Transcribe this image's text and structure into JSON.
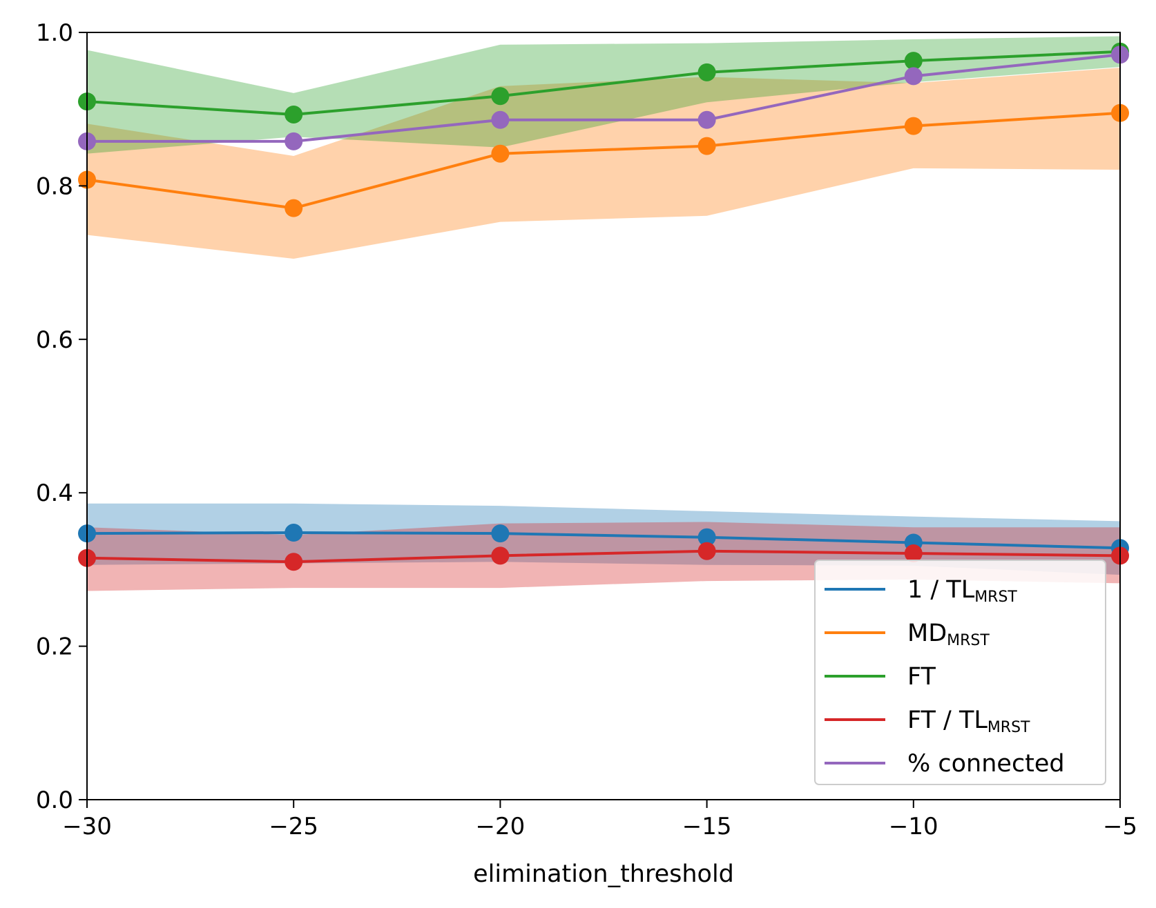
{
  "chart_data": {
    "type": "line",
    "xlabel": "elimination_threshold",
    "ylabel": "",
    "xlim": [
      -30,
      -5
    ],
    "ylim": [
      0.0,
      1.0
    ],
    "grid": false,
    "legend_position": "lower-right",
    "x": [
      -30,
      -25,
      -20,
      -15,
      -10,
      -5
    ],
    "x_tick_labels": [
      "−30",
      "−25",
      "−20",
      "−15",
      "−10",
      "−5"
    ],
    "y_ticks": [
      0.0,
      0.2,
      0.4,
      0.6,
      0.8,
      1.0
    ],
    "y_tick_labels": [
      "0.0",
      "0.2",
      "0.4",
      "0.6",
      "0.8",
      "1.0"
    ],
    "series": [
      {
        "name": "1 / TL",
        "name_subscript": "MRST",
        "color": "#1f77b4",
        "values": [
          0.347,
          0.348,
          0.347,
          0.342,
          0.335,
          0.328
        ],
        "lower": [
          0.306,
          0.308,
          0.31,
          0.306,
          0.305,
          0.293
        ],
        "upper": [
          0.386,
          0.386,
          0.383,
          0.376,
          0.369,
          0.363
        ]
      },
      {
        "name": "MD",
        "name_subscript": "MRST",
        "color": "#ff7f0e",
        "values": [
          0.808,
          0.771,
          0.842,
          0.852,
          0.878,
          0.895
        ],
        "lower": [
          0.736,
          0.705,
          0.753,
          0.761,
          0.823,
          0.821
        ],
        "upper": [
          0.881,
          0.839,
          0.93,
          0.942,
          0.934,
          0.954
        ]
      },
      {
        "name": "FT",
        "name_subscript": "",
        "color": "#2ca02c",
        "values": [
          0.91,
          0.893,
          0.917,
          0.948,
          0.963,
          0.975
        ],
        "lower": [
          0.842,
          0.864,
          0.85,
          0.909,
          0.935,
          0.955
        ],
        "upper": [
          0.977,
          0.921,
          0.984,
          0.986,
          0.991,
          0.995
        ]
      },
      {
        "name": "FT / TL",
        "name_subscript": "MRST",
        "color": "#d62728",
        "values": [
          0.315,
          0.31,
          0.318,
          0.324,
          0.321,
          0.318
        ],
        "lower": [
          0.272,
          0.276,
          0.276,
          0.285,
          0.287,
          0.282
        ],
        "upper": [
          0.355,
          0.345,
          0.36,
          0.362,
          0.355,
          0.355
        ]
      },
      {
        "name": "% connected",
        "name_subscript": "",
        "color": "#9467bd",
        "values": [
          0.858,
          0.858,
          0.886,
          0.886,
          0.943,
          0.971
        ],
        "lower": null,
        "upper": null
      }
    ]
  }
}
